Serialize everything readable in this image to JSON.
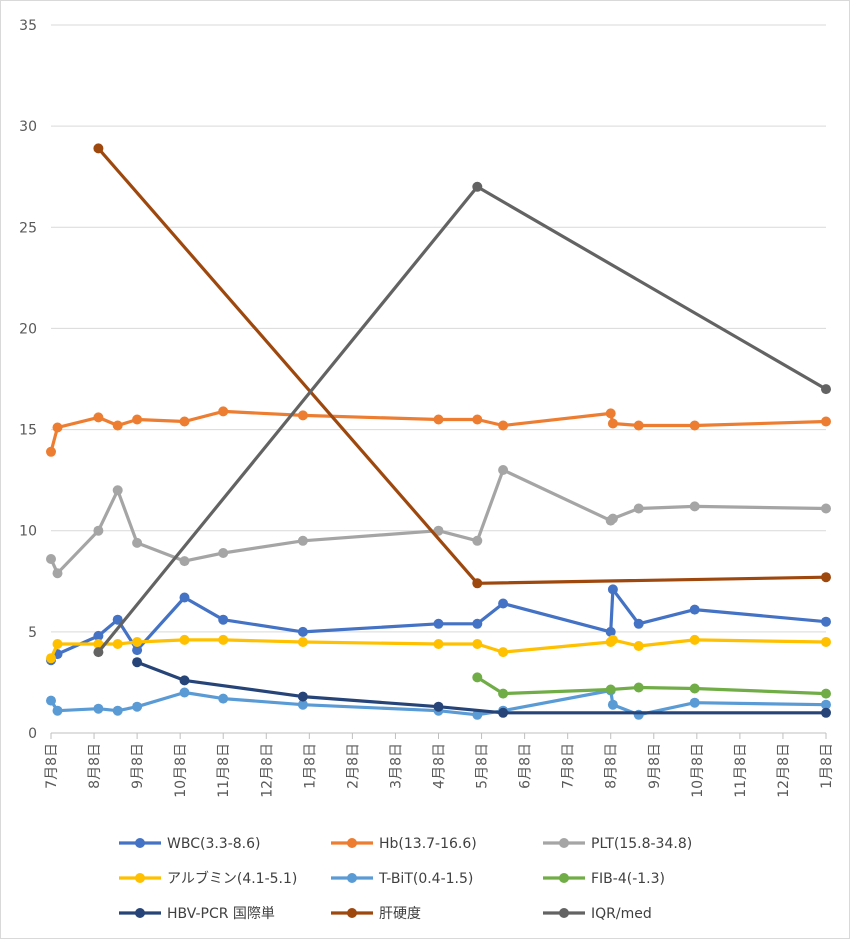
{
  "chart_data": {
    "type": "line",
    "ylim": [
      0,
      35
    ],
    "yticks": [
      0,
      5,
      10,
      15,
      20,
      25,
      30,
      35
    ],
    "grid": "horizontal",
    "legend_position": "bottom",
    "x_tick_labels": [
      "7月8日",
      "8月8日",
      "9月8日",
      "10月8日",
      "11月8日",
      "12月8日",
      "1月8日",
      "2月8日",
      "3月8日",
      "4月8日",
      "5月8日",
      "6月8日",
      "7月8日",
      "8月8日",
      "9月8日",
      "10月8日",
      "11月8日",
      "12月8日",
      "1月8日"
    ],
    "series": [
      {
        "name": "WBC(3.3-8.6)",
        "color": "#4472c4",
        "points": [
          [
            0.0,
            3.6
          ],
          [
            0.15,
            3.9
          ],
          [
            1.1,
            4.8
          ],
          [
            1.55,
            5.6
          ],
          [
            2.0,
            4.1
          ],
          [
            3.1,
            6.7
          ],
          [
            4.0,
            5.6
          ],
          [
            5.85,
            5.0
          ],
          [
            9.0,
            5.4
          ],
          [
            9.9,
            5.4
          ],
          [
            10.5,
            6.4
          ],
          [
            13.0,
            5.0
          ],
          [
            13.05,
            7.1
          ],
          [
            13.65,
            5.4
          ],
          [
            14.95,
            6.1
          ],
          [
            18.0,
            5.5
          ]
        ]
      },
      {
        "name": "Hb(13.7-16.6)",
        "color": "#ed7d31",
        "points": [
          [
            0.0,
            13.9
          ],
          [
            0.15,
            15.1
          ],
          [
            1.1,
            15.6
          ],
          [
            1.55,
            15.2
          ],
          [
            2.0,
            15.5
          ],
          [
            3.1,
            15.4
          ],
          [
            4.0,
            15.9
          ],
          [
            5.85,
            15.7
          ],
          [
            9.0,
            15.5
          ],
          [
            9.9,
            15.5
          ],
          [
            10.5,
            15.2
          ],
          [
            13.0,
            15.8
          ],
          [
            13.05,
            15.3
          ],
          [
            13.65,
            15.2
          ],
          [
            14.95,
            15.2
          ],
          [
            18.0,
            15.4
          ]
        ]
      },
      {
        "name": "PLT(15.8-34.8)",
        "color": "#a5a5a5",
        "points": [
          [
            0.0,
            8.6
          ],
          [
            0.15,
            7.9
          ],
          [
            1.1,
            10.0
          ],
          [
            1.55,
            12.0
          ],
          [
            2.0,
            9.4
          ],
          [
            3.1,
            8.5
          ],
          [
            4.0,
            8.9
          ],
          [
            5.85,
            9.5
          ],
          [
            9.0,
            10.0
          ],
          [
            9.9,
            9.5
          ],
          [
            10.5,
            13.0
          ],
          [
            13.0,
            10.5
          ],
          [
            13.05,
            10.6
          ],
          [
            13.65,
            11.1
          ],
          [
            14.95,
            11.2
          ],
          [
            18.0,
            11.1
          ]
        ]
      },
      {
        "name": "アルブミン(4.1-5.1)",
        "color": "#ffc000",
        "points": [
          [
            0.0,
            3.7
          ],
          [
            0.15,
            4.4
          ],
          [
            1.1,
            4.4
          ],
          [
            1.55,
            4.4
          ],
          [
            2.0,
            4.5
          ],
          [
            3.1,
            4.6
          ],
          [
            4.0,
            4.6
          ],
          [
            5.85,
            4.5
          ],
          [
            9.0,
            4.4
          ],
          [
            9.9,
            4.4
          ],
          [
            10.5,
            4.0
          ],
          [
            13.0,
            4.5
          ],
          [
            13.05,
            4.6
          ],
          [
            13.65,
            4.3
          ],
          [
            14.95,
            4.6
          ],
          [
            18.0,
            4.5
          ]
        ]
      },
      {
        "name": "T-BiT(0.4-1.5)",
        "color": "#5b9bd5",
        "points": [
          [
            0.0,
            1.6
          ],
          [
            0.15,
            1.1
          ],
          [
            1.1,
            1.2
          ],
          [
            1.55,
            1.1
          ],
          [
            2.0,
            1.3
          ],
          [
            3.1,
            2.0
          ],
          [
            4.0,
            1.7
          ],
          [
            5.85,
            1.4
          ],
          [
            9.0,
            1.1
          ],
          [
            9.9,
            0.9
          ],
          [
            10.5,
            1.1
          ],
          [
            13.0,
            2.1
          ],
          [
            13.05,
            1.4
          ],
          [
            13.65,
            0.9
          ],
          [
            14.95,
            1.5
          ],
          [
            18.0,
            1.4
          ]
        ]
      },
      {
        "name": "FIB-4(-1.3)",
        "color": "#70ad47",
        "points": [
          [
            9.9,
            2.75
          ],
          [
            10.5,
            1.95
          ],
          [
            13.0,
            2.15
          ],
          [
            13.65,
            2.25
          ],
          [
            14.95,
            2.2
          ],
          [
            18.0,
            1.95
          ]
        ]
      },
      {
        "name": "HBV-PCR 国際単",
        "color": "#264478",
        "points": [
          [
            2.0,
            3.5
          ],
          [
            3.1,
            2.6
          ],
          [
            5.85,
            1.8
          ],
          [
            9.0,
            1.3
          ],
          [
            10.5,
            1.0
          ],
          [
            18.0,
            1.0
          ]
        ]
      },
      {
        "name": "肝硬度",
        "color": "#9e480e",
        "points": [
          [
            1.1,
            28.9
          ],
          [
            9.9,
            7.4
          ],
          [
            18.0,
            7.7
          ]
        ]
      },
      {
        "name": "IQR/med",
        "color": "#636363",
        "points": [
          [
            1.1,
            4.0
          ],
          [
            9.9,
            27.0
          ],
          [
            18.0,
            17.0
          ]
        ]
      }
    ]
  }
}
